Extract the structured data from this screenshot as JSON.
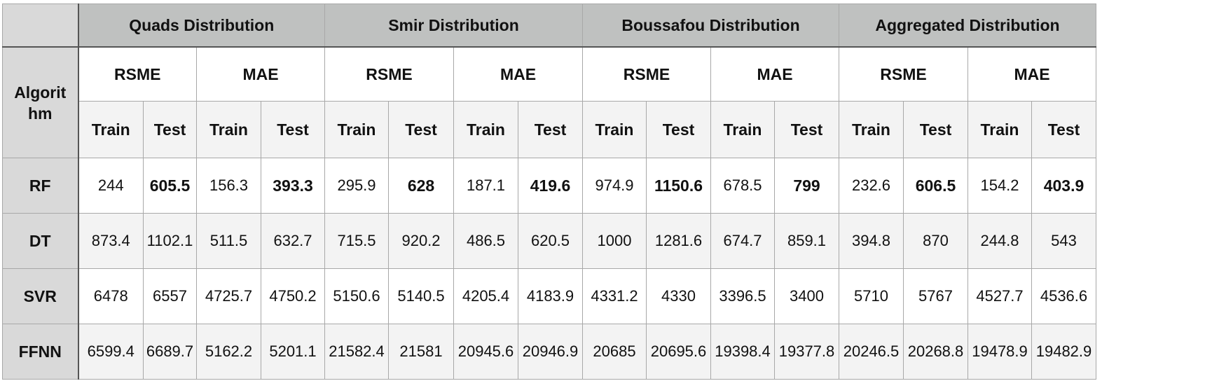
{
  "table": {
    "distributions": [
      "Quads Distribution",
      "Smir Distribution",
      "Boussafou Distribution",
      "Aggregated Distribution"
    ],
    "algorithm_header": "Algorithm",
    "algorithm_header_line1": "Algorit",
    "algorithm_header_line2": "hm",
    "metrics": [
      "RSME",
      "MAE"
    ],
    "splits": [
      "Train",
      "Test"
    ],
    "rows": [
      {
        "algorithm": "RF",
        "values": [
          "244",
          "605.5",
          "156.3",
          "393.3",
          "295.9",
          "628",
          "187.1",
          "419.6",
          "974.9",
          "1150.6",
          "678.5",
          "799",
          "232.6",
          "606.5",
          "154.2",
          "403.9"
        ]
      },
      {
        "algorithm": "DT",
        "values": [
          "873.4",
          "1102.1",
          "511.5",
          "632.7",
          "715.5",
          "920.2",
          "486.5",
          "620.5",
          "1000",
          "1281.6",
          "674.7",
          "859.1",
          "394.8",
          "870",
          "244.8",
          "543"
        ]
      },
      {
        "algorithm": "SVR",
        "values": [
          "6478",
          "6557",
          "4725.7",
          "4750.2",
          "5150.6",
          "5140.5",
          "4205.4",
          "4183.9",
          "4331.2",
          "4330",
          "3396.5",
          "3400",
          "5710",
          "5767",
          "4527.7",
          "4536.6"
        ]
      },
      {
        "algorithm": "FFNN",
        "values": [
          "6599.4",
          "6689.7",
          "5162.2",
          "5201.1",
          "21582.4",
          "21581",
          "20945.6",
          "20946.9",
          "20685",
          "20695.6",
          "19398.4",
          "19377.8",
          "20246.5",
          "20268.8",
          "19478.9",
          "19482.9"
        ]
      }
    ]
  }
}
